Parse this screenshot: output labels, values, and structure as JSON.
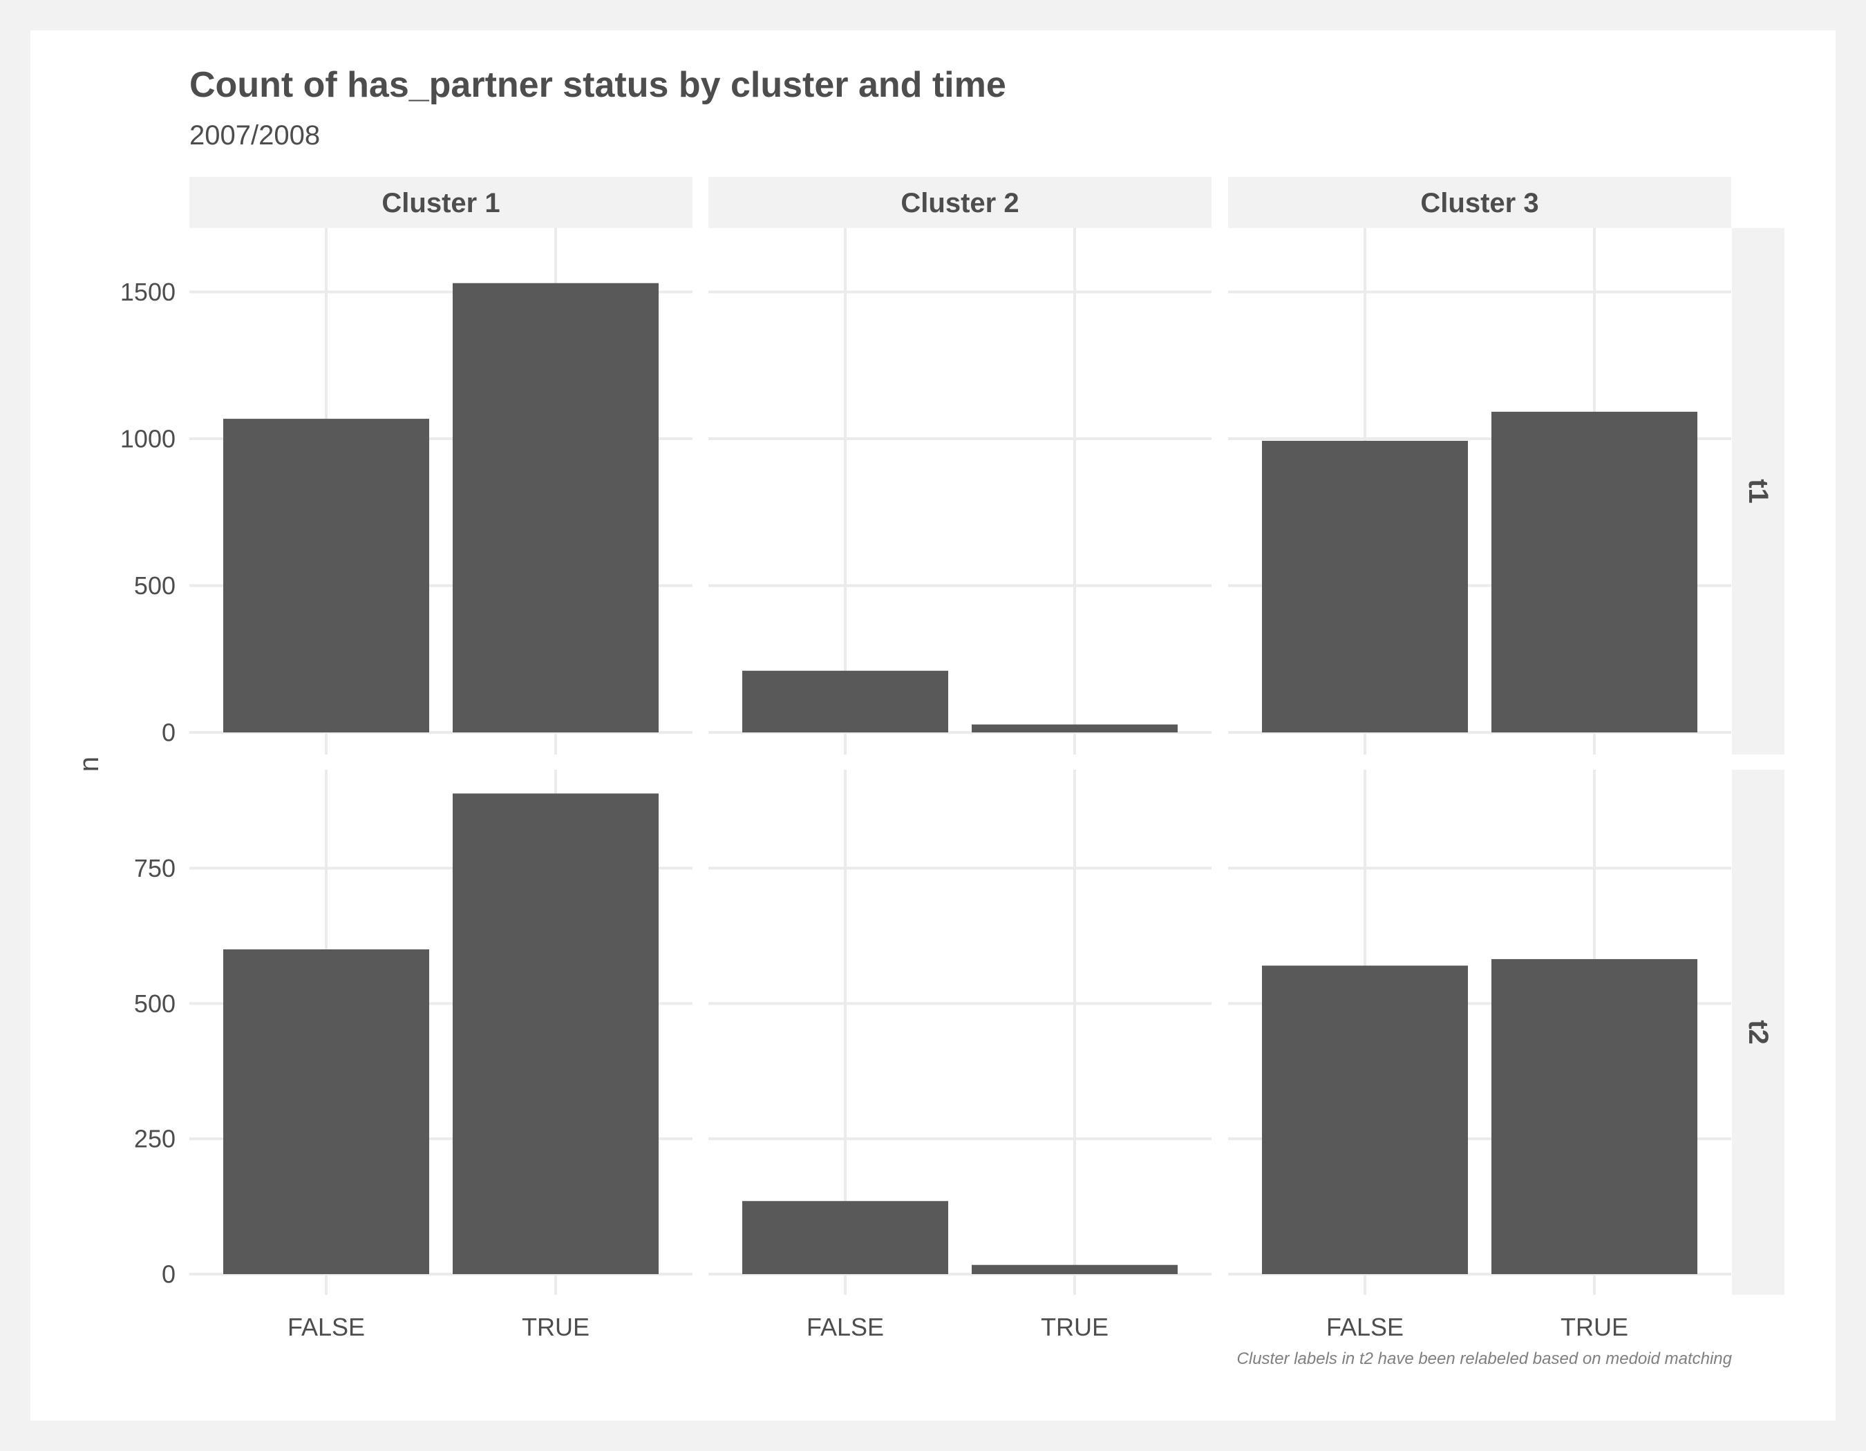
{
  "chart_data": {
    "type": "bar",
    "title": "Count of has_partner status by cluster and time",
    "subtitle": "2007/2008",
    "ylabel": "n",
    "xlabel": "",
    "caption": "Cluster labels in t2 have been relabeled based on medoid matching",
    "facet_columns": [
      "Cluster 1",
      "Cluster 2",
      "Cluster 3"
    ],
    "facet_rows": [
      "t1",
      "t2"
    ],
    "categories": [
      "FALSE",
      "TRUE"
    ],
    "grid": true,
    "legend": "none",
    "bar_color": "#595959",
    "rows": [
      {
        "row": "t1",
        "ylim": [
          0,
          1600
        ],
        "ticks": [
          0,
          500,
          1000,
          1500
        ],
        "tick_labels": [
          "0",
          "500",
          "1000",
          "1500"
        ],
        "panels": [
          {
            "column": "Cluster 1",
            "values": [
              1068,
              1530
            ]
          },
          {
            "column": "Cluster 2",
            "values": [
              210,
              27
            ]
          },
          {
            "column": "Cluster 3",
            "values": [
              993,
              1092
            ]
          }
        ]
      },
      {
        "row": "t2",
        "ylim": [
          0,
          900
        ],
        "ticks": [
          0,
          250,
          500,
          750
        ],
        "tick_labels": [
          "0",
          "250",
          "500",
          "750"
        ],
        "panels": [
          {
            "column": "Cluster 1",
            "values": [
              600,
              888
            ]
          },
          {
            "column": "Cluster 2",
            "values": [
              135,
              17
            ]
          },
          {
            "column": "Cluster 3",
            "values": [
              570,
              582
            ]
          }
        ]
      }
    ]
  }
}
